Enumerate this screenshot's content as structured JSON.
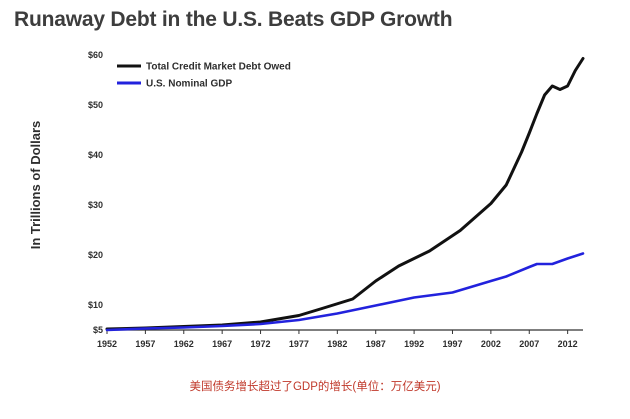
{
  "chart_data": {
    "type": "line",
    "title": "Runaway Debt in the U.S. Beats GDP Growth",
    "ylabel": "In Trillions of Dollars",
    "xlabel": "",
    "xlim": [
      1952,
      2014
    ],
    "ylim": [
      5,
      60
    ],
    "x_ticks": [
      "1952",
      "1957",
      "1962",
      "1967",
      "1972",
      "1977",
      "1982",
      "1987",
      "1992",
      "1997",
      "2002",
      "2007",
      "2012"
    ],
    "y_ticks": [
      "$5",
      "$10",
      "$20",
      "$30",
      "$40",
      "$50",
      "$60"
    ],
    "y_tick_values": [
      5,
      10,
      20,
      30,
      40,
      50,
      60
    ],
    "legend_position": "top-left",
    "grid": false,
    "series": [
      {
        "name": "Total Credit Market Debt Owed",
        "color": "#111111",
        "x": [
          1952,
          1957,
          1962,
          1967,
          1972,
          1977,
          1980,
          1984,
          1987,
          1990,
          1994,
          1998,
          2002,
          2004,
          2006,
          2007,
          2008,
          2009,
          2010,
          2011,
          2012,
          2013,
          2014
        ],
        "y": [
          5.2,
          5.4,
          5.7,
          6.0,
          6.6,
          7.9,
          9.3,
          11.2,
          14.8,
          17.8,
          20.8,
          24.9,
          30.3,
          34.0,
          40.6,
          44.4,
          48.3,
          52.0,
          53.8,
          53.1,
          53.8,
          56.9,
          59.3
        ]
      },
      {
        "name": "U.S. Nominal GDP",
        "color": "#2222dd",
        "x": [
          1952,
          1957,
          1962,
          1967,
          1972,
          1977,
          1982,
          1987,
          1992,
          1997,
          2002,
          2004,
          2007,
          2008,
          2009,
          2010,
          2012,
          2014
        ],
        "y": [
          5.0,
          5.3,
          5.5,
          5.8,
          6.2,
          7.0,
          8.3,
          9.9,
          11.5,
          12.5,
          14.8,
          15.7,
          17.6,
          18.2,
          18.2,
          18.2,
          19.3,
          20.3
        ]
      }
    ]
  },
  "caption": "美国债务增长超过了GDP的增长(单位：万亿美元)"
}
